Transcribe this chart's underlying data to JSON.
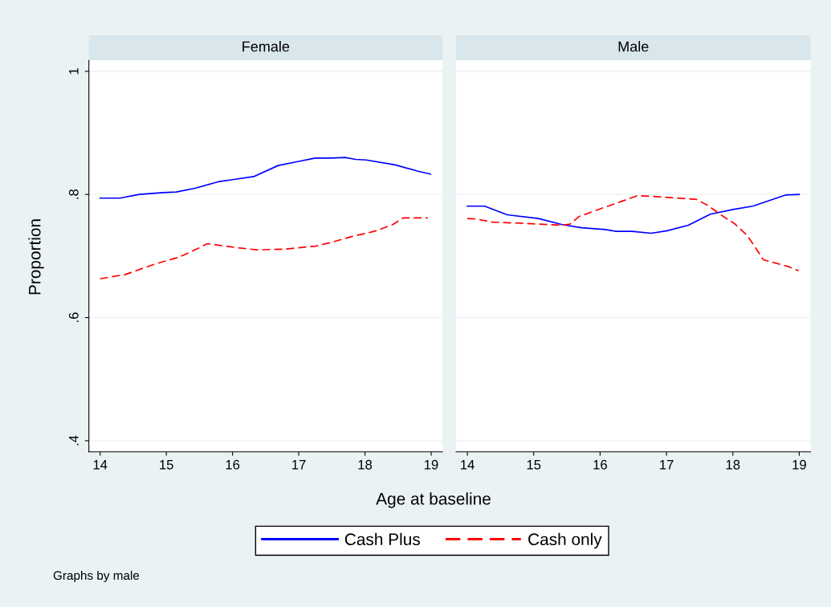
{
  "chart_data": [
    {
      "type": "line",
      "title": "Female",
      "xlabel": "Age at baseline",
      "ylabel": "Proportion",
      "xlim": [
        13.83,
        19.17
      ],
      "ylim": [
        0.382,
        1.018
      ],
      "xticks": [
        14,
        15,
        16,
        17,
        18,
        19
      ],
      "yticks": [
        {
          "value": 0.4,
          "label": ".4"
        },
        {
          "value": 0.6,
          "label": ".6"
        },
        {
          "value": 0.8,
          "label": ".8"
        },
        {
          "value": 1,
          "label": "1"
        }
      ],
      "grid": "y",
      "legend": "bottom",
      "annotations": [
        "Graphs by male"
      ],
      "series": [
        {
          "name": "Cash Plus",
          "color": "#0000ff",
          "line_style": "solid",
          "x": [
            14,
            14.3,
            14.59,
            14.95,
            15.15,
            15.43,
            15.8,
            16,
            16.32,
            16.69,
            16.97,
            17.25,
            17.49,
            17.7,
            17.86,
            18.02,
            18.46,
            18.79,
            18.99
          ],
          "values": [
            0.794,
            0.794,
            0.8,
            0.803,
            0.804,
            0.81,
            0.821,
            0.824,
            0.829,
            0.847,
            0.853,
            0.859,
            0.859,
            0.86,
            0.857,
            0.856,
            0.848,
            0.838,
            0.833
          ]
        },
        {
          "name": "Cash only",
          "color": "#ff0000",
          "line_style": "dashed",
          "x": [
            14,
            14.38,
            14.83,
            15.19,
            15.47,
            15.62,
            16.04,
            16.36,
            16.77,
            17.25,
            17.49,
            17.78,
            18.14,
            18.42,
            18.58,
            18.95
          ],
          "values": [
            0.663,
            0.67,
            0.687,
            0.698,
            0.712,
            0.72,
            0.714,
            0.71,
            0.711,
            0.716,
            0.722,
            0.731,
            0.74,
            0.751,
            0.762,
            0.762
          ]
        }
      ]
    },
    {
      "type": "line",
      "title": "Male",
      "xlim": [
        13.83,
        19.17
      ],
      "ylim": [
        0.382,
        1.018
      ],
      "xticks": [
        14,
        15,
        16,
        17,
        18,
        19
      ],
      "yticks": [
        {
          "value": 0.4,
          "label": null
        },
        {
          "value": 0.6,
          "label": null
        },
        {
          "value": 0.8,
          "label": null
        },
        {
          "value": 1,
          "label": null
        }
      ],
      "grid": "y",
      "tick_labels": "x",
      "series": [
        {
          "color": "#0000ff",
          "line_style": "solid",
          "x": [
            14,
            14.26,
            14.6,
            15.07,
            15.43,
            15.72,
            16.08,
            16.24,
            16.48,
            16.77,
            17.01,
            17.33,
            17.66,
            18.02,
            18.3,
            18.79,
            19
          ],
          "values": [
            0.781,
            0.781,
            0.767,
            0.761,
            0.751,
            0.746,
            0.743,
            0.74,
            0.74,
            0.737,
            0.741,
            0.75,
            0.768,
            0.776,
            0.781,
            0.799,
            0.8
          ]
        },
        {
          "color": "#ff0000",
          "line_style": "dashed",
          "x": [
            14,
            14.14,
            14.38,
            14.87,
            15.43,
            15.55,
            15.68,
            16.04,
            16.28,
            16.56,
            16.77,
            17.45,
            17.61,
            17.86,
            18.02,
            18.22,
            18.46,
            18.83,
            18.99
          ],
          "values": [
            0.761,
            0.76,
            0.755,
            0.753,
            0.75,
            0.752,
            0.764,
            0.778,
            0.787,
            0.798,
            0.797,
            0.792,
            0.783,
            0.764,
            0.753,
            0.733,
            0.694,
            0.683,
            0.676
          ]
        }
      ]
    }
  ]
}
